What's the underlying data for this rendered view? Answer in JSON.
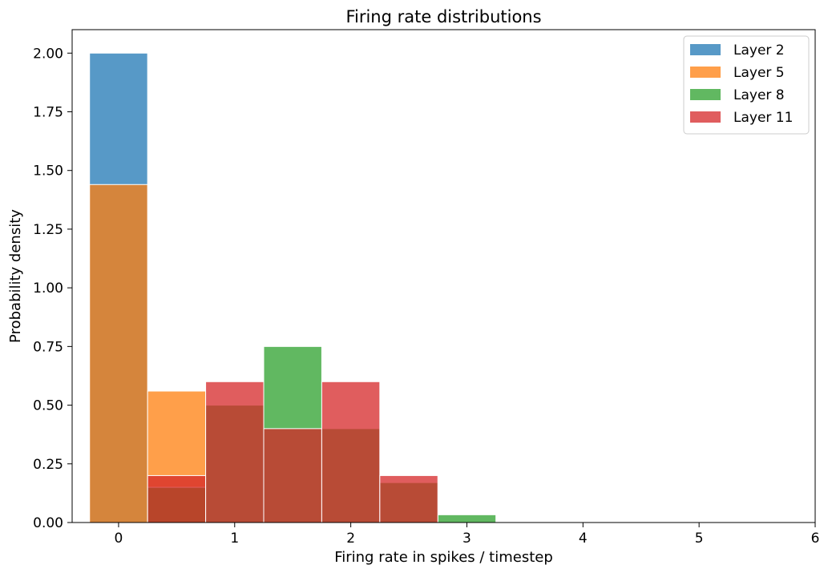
{
  "chart_data": {
    "type": "bar",
    "title": "Firing rate distributions",
    "xlabel": "Firing rate in spikes / timestep",
    "ylabel": "Probability density",
    "xlim": [
      -0.4,
      6.0
    ],
    "ylim": [
      0.0,
      2.1
    ],
    "xticks": [
      0,
      1,
      2,
      3,
      4,
      5,
      6
    ],
    "yticks": [
      0.0,
      0.25,
      0.5,
      0.75,
      1.0,
      1.25,
      1.5,
      1.75,
      2.0
    ],
    "ytick_labels": [
      "0.00",
      "0.25",
      "0.50",
      "0.75",
      "1.00",
      "1.25",
      "1.50",
      "1.75",
      "2.00"
    ],
    "xtick_labels": [
      "0",
      "1",
      "2",
      "3",
      "4",
      "5",
      "6"
    ],
    "bin_edges": [
      -0.25,
      0.25,
      0.75,
      1.25,
      1.75,
      2.25,
      2.75,
      3.25
    ],
    "grid": false,
    "legend_position": "top-right",
    "series": [
      {
        "name": "Layer 2",
        "color": "#1f77b4",
        "values": [
          2.0,
          0.0,
          0.0,
          0.0,
          0.0,
          0.0,
          0.0
        ]
      },
      {
        "name": "Layer 5",
        "color": "#ff7f0e",
        "values": [
          1.44,
          0.56,
          0.0,
          0.0,
          0.0,
          0.0,
          0.0
        ]
      },
      {
        "name": "Layer 8",
        "color": "#2ca02c",
        "values": [
          0.0,
          0.15,
          0.5,
          0.75,
          0.4,
          0.17,
          0.033
        ]
      },
      {
        "name": "Layer 11",
        "color": "#d62728",
        "values": [
          0.0,
          0.2,
          0.6,
          0.4,
          0.6,
          0.2,
          0.0
        ]
      }
    ]
  }
}
